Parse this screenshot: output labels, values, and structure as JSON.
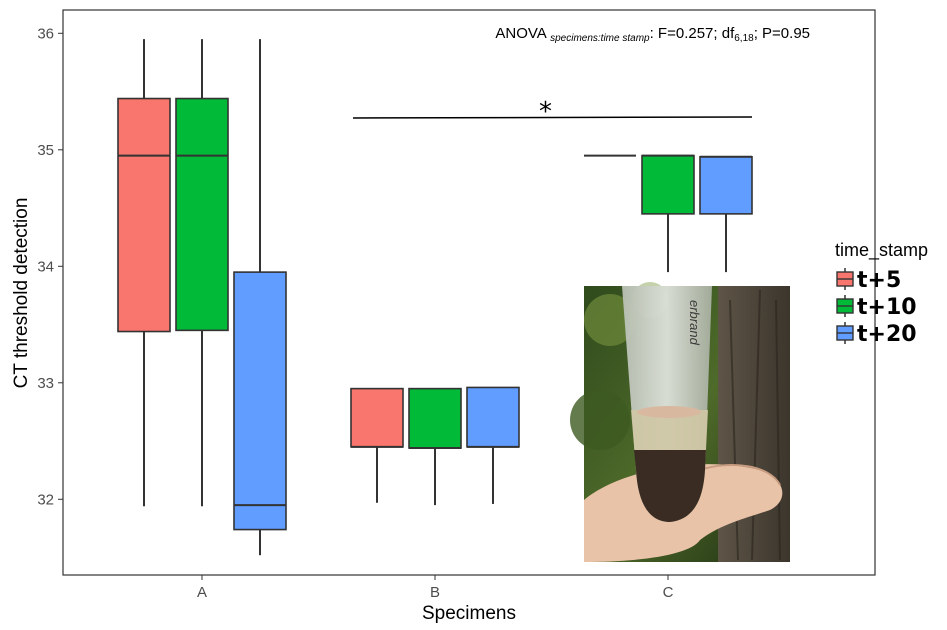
{
  "chart_data": {
    "type": "boxplot",
    "xlabel": "Specimens",
    "ylabel": "CT threshold detection",
    "categories": [
      "A",
      "B",
      "C"
    ],
    "ylim": [
      31.35,
      36.2
    ],
    "yticks": [
      32,
      33,
      34,
      35,
      36
    ],
    "grid": false,
    "legend": {
      "title": "time_stamp",
      "placement": "right"
    },
    "series": [
      {
        "name": "t+5",
        "color": "#F8766D",
        "boxes": [
          {
            "category": "A",
            "whisker_low": 31.94,
            "q1": 33.44,
            "median": 34.95,
            "q3": 35.44,
            "whisker_high": 35.95
          },
          {
            "category": "B",
            "whisker_low": 31.97,
            "q1": 32.45,
            "median": 32.45,
            "q3": 32.95,
            "whisker_high": 32.95
          },
          {
            "category": "C",
            "whisker_low": 34.95,
            "q1": 34.95,
            "median": 34.95,
            "q3": 34.95,
            "whisker_high": 34.95
          }
        ]
      },
      {
        "name": "t+10",
        "color": "#00BA38",
        "boxes": [
          {
            "category": "A",
            "whisker_low": 31.94,
            "q1": 33.45,
            "median": 34.95,
            "q3": 35.44,
            "whisker_high": 35.95
          },
          {
            "category": "B",
            "whisker_low": 31.95,
            "q1": 32.44,
            "median": 32.44,
            "q3": 32.95,
            "whisker_high": 32.95
          },
          {
            "category": "C",
            "whisker_low": 33.95,
            "q1": 34.45,
            "median": 34.95,
            "q3": 34.95,
            "whisker_high": 34.95
          }
        ]
      },
      {
        "name": "t+20",
        "color": "#619CFF",
        "boxes": [
          {
            "category": "A",
            "whisker_low": 31.52,
            "q1": 31.74,
            "median": 31.95,
            "q3": 33.95,
            "whisker_high": 35.95
          },
          {
            "category": "B",
            "whisker_low": 31.96,
            "q1": 32.45,
            "median": 32.45,
            "q3": 32.96,
            "whisker_high": 32.96
          },
          {
            "category": "C",
            "whisker_low": 33.95,
            "q1": 34.45,
            "median": 34.94,
            "q3": 34.94,
            "whisker_high": 34.94
          }
        ]
      }
    ],
    "annotations": {
      "anova_prefix": "ANOVA ",
      "anova_subscript": "specimens:time stamp",
      "anova_stats_a": ":  F=0.257; df",
      "anova_df_subscript": "6,18",
      "anova_stats_b": "; P=0.95",
      "significance_marker": "*",
      "significance_span": [
        "B",
        "C"
      ]
    }
  },
  "inset_photo": {
    "brand_text": "erbrand"
  }
}
